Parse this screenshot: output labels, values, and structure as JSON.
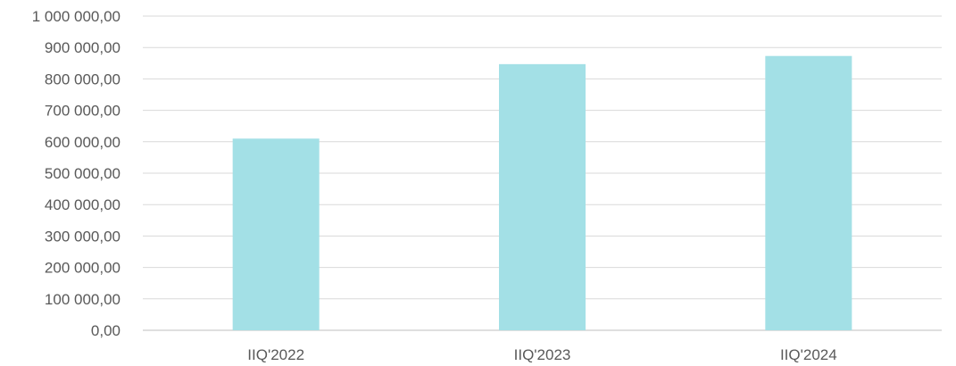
{
  "chart_data": {
    "type": "bar",
    "categories": [
      "IIQ'2022",
      "IIQ'2023",
      "IIQ'2024"
    ],
    "values": [
      610000,
      847000,
      873000
    ],
    "ylim": [
      0,
      1000000
    ],
    "y_ticks": [
      {
        "value": 0,
        "label": "0,00"
      },
      {
        "value": 100000,
        "label": "100 000,00"
      },
      {
        "value": 200000,
        "label": "200 000,00"
      },
      {
        "value": 300000,
        "label": "300 000,00"
      },
      {
        "value": 400000,
        "label": "400 000,00"
      },
      {
        "value": 500000,
        "label": "500 000,00"
      },
      {
        "value": 600000,
        "label": "600 000,00"
      },
      {
        "value": 700000,
        "label": "700 000,00"
      },
      {
        "value": 800000,
        "label": "800 000,00"
      },
      {
        "value": 900000,
        "label": "900 000,00"
      },
      {
        "value": 1000000,
        "label": "1 000 000,00"
      }
    ],
    "bar_color": "#a3e0e6",
    "grid": true,
    "legend": "none"
  }
}
